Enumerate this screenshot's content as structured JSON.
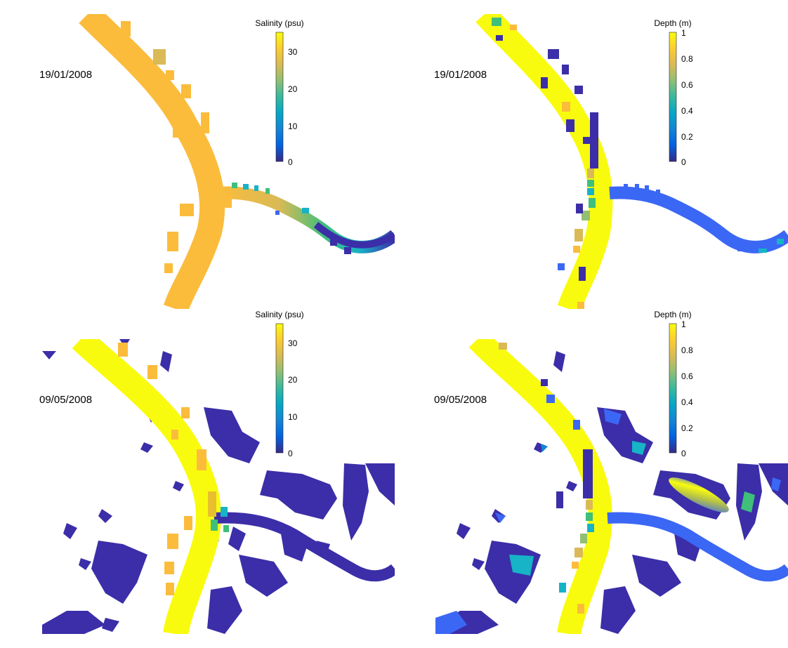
{
  "panels": [
    {
      "date": "19/01/2008",
      "variable": "salinity",
      "colorbar": {
        "label": "Salinity (psu)",
        "ticks": [
          "0",
          "10",
          "20",
          "30"
        ]
      }
    },
    {
      "date": "19/01/2008",
      "variable": "depth",
      "colorbar": {
        "label": "Depth (m)",
        "ticks": [
          "0",
          "0.2",
          "0.4",
          "0.6",
          "0.8",
          "1"
        ]
      }
    },
    {
      "date": "09/05/2008",
      "variable": "salinity",
      "colorbar": {
        "label": "Salinity (psu)",
        "ticks": [
          "0",
          "10",
          "20",
          "30"
        ]
      }
    },
    {
      "date": "09/05/2008",
      "variable": "depth",
      "colorbar": {
        "label": "Depth (m)",
        "ticks": [
          "0",
          "0.2",
          "0.4",
          "0.6",
          "0.8",
          "1"
        ]
      }
    }
  ],
  "colormap": "parula",
  "colors": {
    "yellow": "#f9fb0e",
    "orange": "#fbbc3c",
    "gold": "#e8c02d",
    "green": "#3ebf7a",
    "teal": "#17b3c6",
    "blue": "#3b67f5",
    "dark_blue": "#3b2ea8",
    "navy": "#352a87"
  }
}
